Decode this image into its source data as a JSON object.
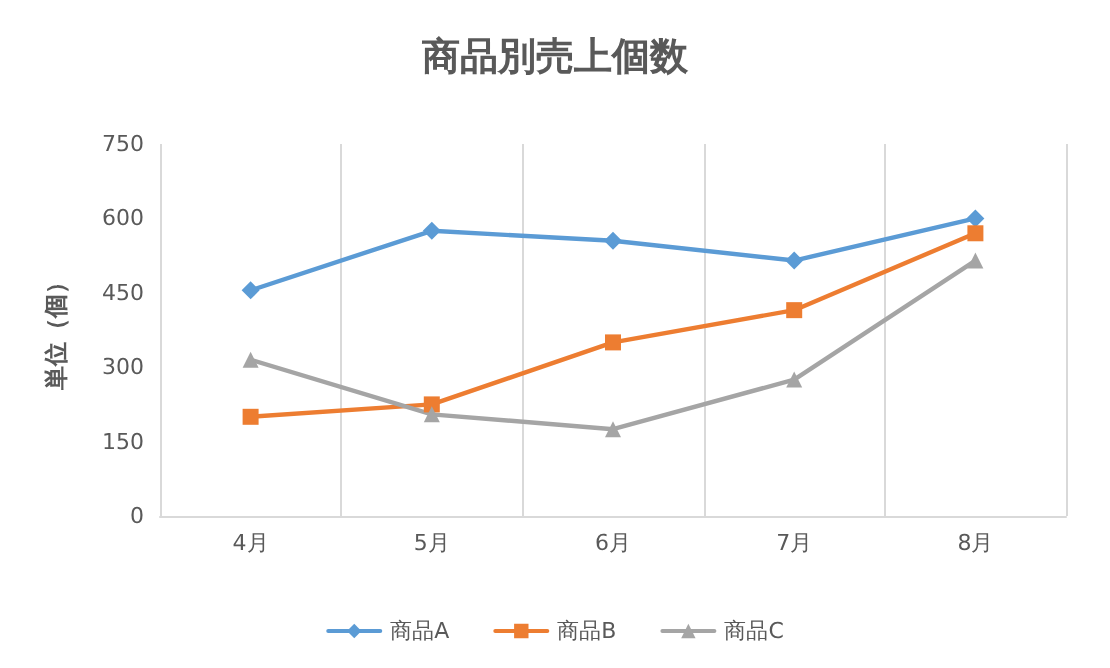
{
  "chart_data": {
    "type": "line",
    "title": "商品別売上個数",
    "ylabel": "単位（個）",
    "categories": [
      "4月",
      "5月",
      "6月",
      "7月",
      "8月"
    ],
    "series": [
      {
        "name": "商品A",
        "color": "#5b9bd5",
        "values": [
          455,
          575,
          555,
          515,
          600
        ],
        "marker": "diamond"
      },
      {
        "name": "商品B",
        "color": "#ed7d31",
        "values": [
          200,
          225,
          350,
          415,
          570
        ],
        "marker": "square"
      },
      {
        "name": "商品C",
        "color": "#a5a5a5",
        "values": [
          315,
          205,
          175,
          275,
          515
        ],
        "marker": "triangle"
      }
    ],
    "ylim": [
      0,
      750
    ],
    "yticks": [
      0,
      150,
      300,
      450,
      600,
      750
    ],
    "grid": "x",
    "legend": "bottom",
    "line_style": "solid"
  }
}
